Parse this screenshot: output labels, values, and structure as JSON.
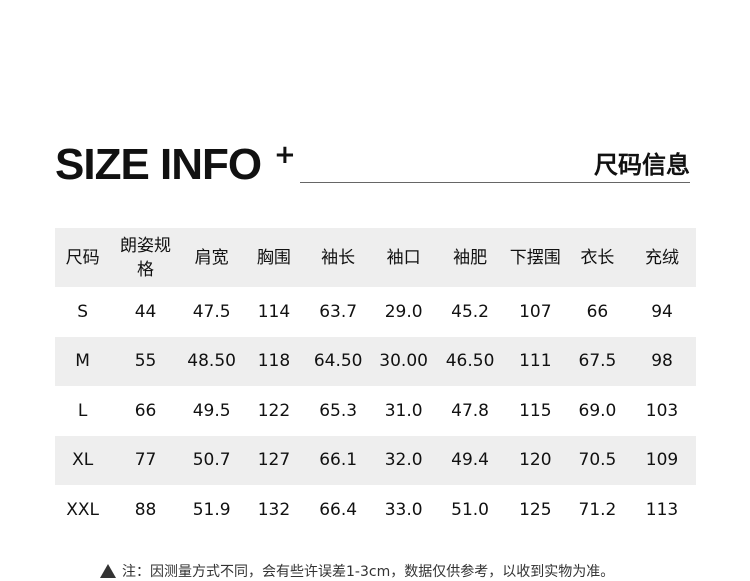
{
  "header": {
    "title": "SIZE INFO",
    "plus": "+",
    "title_cn": "尺码信息"
  },
  "table": {
    "columns": [
      "尺码",
      "朗姿规格",
      "肩宽",
      "胸围",
      "袖长",
      "袖口",
      "袖肥",
      "下摆围",
      "衣长",
      "充绒"
    ],
    "rows": [
      [
        "S",
        "44",
        "47.5",
        "114",
        "63.7",
        "29.0",
        "45.2",
        "107",
        "66",
        "94"
      ],
      [
        "M",
        "55",
        "48.50",
        "118",
        "64.50",
        "30.00",
        "46.50",
        "111",
        "67.5",
        "98"
      ],
      [
        "L",
        "66",
        "49.5",
        "122",
        "65.3",
        "31.0",
        "47.8",
        "115",
        "69.0",
        "103"
      ],
      [
        "XL",
        "77",
        "50.7",
        "127",
        "66.1",
        "32.0",
        "49.4",
        "120",
        "70.5",
        "109"
      ],
      [
        "XXL",
        "88",
        "51.9",
        "132",
        "66.4",
        "33.0",
        "51.0",
        "125",
        "71.2",
        "113"
      ]
    ]
  },
  "note": {
    "icon": "warning-icon",
    "text": "注：因测量方式不同，会有些许误差1-3cm，数据仅供参考，以收到实物为准。"
  }
}
